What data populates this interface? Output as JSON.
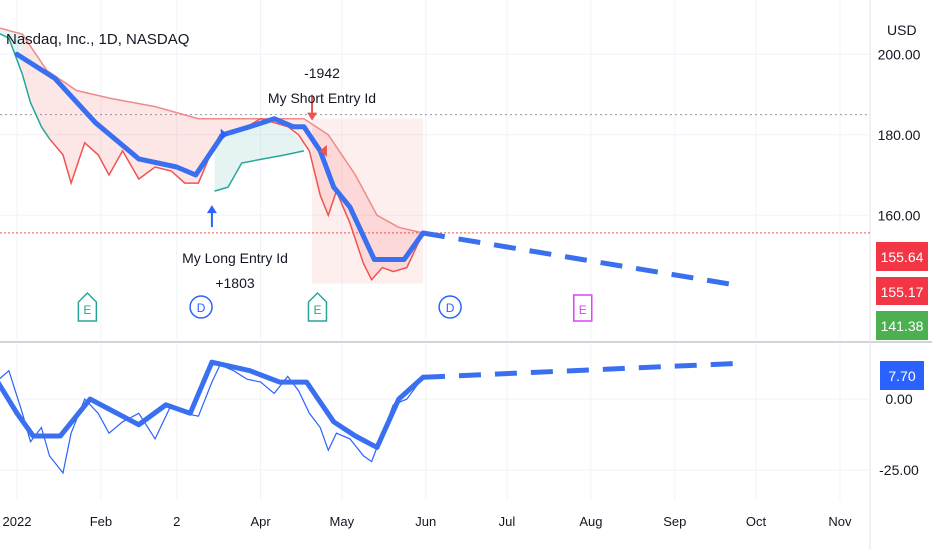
{
  "header": {
    "title": "Nasdaq, Inc., 1D, NASDAQ",
    "currency": "USD"
  },
  "annotations": {
    "short_value": "-1942",
    "short_label": "My Short Entry Id",
    "long_label": "My Long Entry Id",
    "long_value": "+1803"
  },
  "events": {
    "earnings_letter": "E",
    "dividend_letter": "D"
  },
  "price_badges": {
    "last": "155.64",
    "mid": "155.17",
    "low": "141.38"
  },
  "osc_badge": "7.70",
  "colors": {
    "blue": "#2962ff",
    "thick_blue": "#3a6ff0",
    "red": "#ef5350",
    "green": "#26a69a",
    "magenta": "#e040fb",
    "badge_red": "#f23645",
    "badge_green": "#4caf50",
    "grid": "#f0f3fa",
    "axis_text": "#131722"
  },
  "chart_data": [
    {
      "type": "line",
      "title": "Nasdaq, Inc., 1D, NASDAQ",
      "ylabel": "USD",
      "ylim": [
        130,
        212
      ],
      "x_ticks": [
        {
          "date": "2022-01-01",
          "label": "2022"
        },
        {
          "date": "2022-02-01",
          "label": "Feb"
        },
        {
          "date": "2022-03-01",
          "label": "2"
        },
        {
          "date": "2022-04-01",
          "label": "Apr"
        },
        {
          "date": "2022-05-01",
          "label": "May"
        },
        {
          "date": "2022-06-01",
          "label": "Jun"
        },
        {
          "date": "2022-07-01",
          "label": "Jul"
        },
        {
          "date": "2022-08-01",
          "label": "Aug"
        },
        {
          "date": "2022-09-01",
          "label": "Sep"
        },
        {
          "date": "2022-10-01",
          "label": "Oct"
        },
        {
          "date": "2022-11-01",
          "label": "Nov"
        }
      ],
      "y_ticks": [
        200,
        180,
        160
      ],
      "reference_line": 185,
      "last_price_line": 155.64,
      "series": [
        {
          "id": "price",
          "x": [
            "2021-12-23",
            "2021-12-29",
            "2022-01-03",
            "2022-01-06",
            "2022-01-10",
            "2022-01-13",
            "2022-01-18",
            "2022-01-21",
            "2022-01-26",
            "2022-01-31",
            "2022-02-04",
            "2022-02-09",
            "2022-02-15",
            "2022-02-21",
            "2022-02-27",
            "2022-03-04",
            "2022-03-09",
            "2022-03-14",
            "2022-03-17",
            "2022-03-22",
            "2022-03-27",
            "2022-04-01",
            "2022-04-06",
            "2022-04-11",
            "2022-04-15",
            "2022-04-19",
            "2022-04-23",
            "2022-04-26",
            "2022-04-29",
            "2022-05-04",
            "2022-05-09",
            "2022-05-12",
            "2022-05-16",
            "2022-05-20",
            "2022-05-25",
            "2022-05-31"
          ],
          "y": [
            206,
            204,
            195,
            188,
            182,
            179,
            175,
            168,
            178,
            175,
            170,
            176,
            169,
            172,
            171,
            168,
            168,
            176,
            180,
            181,
            182,
            184,
            183,
            182,
            180,
            176,
            165,
            160,
            166,
            158,
            148,
            144,
            147,
            146,
            147,
            155.6
          ]
        },
        {
          "id": "trend-line",
          "x": [
            "2022-01-01",
            "2022-01-15",
            "2022-01-30",
            "2022-02-15",
            "2022-03-01",
            "2022-03-08",
            "2022-03-18",
            "2022-03-28",
            "2022-04-06",
            "2022-04-13",
            "2022-04-17",
            "2022-04-23",
            "2022-04-28",
            "2022-05-04",
            "2022-05-13",
            "2022-05-20",
            "2022-05-24",
            "2022-05-31"
          ],
          "y": [
            200,
            194,
            183,
            174,
            172,
            170,
            180,
            182,
            184,
            182,
            182,
            176,
            167,
            162,
            149,
            149,
            149,
            155.6
          ]
        },
        {
          "id": "stop-upper",
          "x": [
            "2021-12-23",
            "2022-01-03",
            "2022-01-12",
            "2022-01-23",
            "2022-02-05",
            "2022-02-21",
            "2022-03-09",
            "2022-03-15",
            "2022-04-17",
            "2022-04-26",
            "2022-05-06",
            "2022-05-14",
            "2022-05-22",
            "2022-05-31"
          ],
          "y": [
            207,
            205,
            196,
            191,
            189,
            187,
            184,
            184,
            184,
            180,
            170,
            160,
            157,
            155.6
          ]
        },
        {
          "id": "stop-lower",
          "x": [
            "2022-03-15",
            "2022-03-20",
            "2022-03-25",
            "2022-04-02",
            "2022-04-10",
            "2022-04-17"
          ],
          "y": [
            166,
            167,
            173,
            174,
            175,
            176
          ]
        },
        {
          "id": "projection",
          "x": [
            "2022-05-31",
            "2022-09-25"
          ],
          "y": [
            155.6,
            142.5
          ]
        }
      ],
      "markers": [
        {
          "label": "My Long Entry Id",
          "value": "+1803",
          "date": "2022-03-14",
          "price": 168,
          "side": "long"
        },
        {
          "label": "My Short Entry Id",
          "value": "-1942",
          "date": "2022-04-20",
          "price": 184,
          "side": "short"
        }
      ],
      "events": [
        {
          "type": "E",
          "date": "2022-01-27",
          "color": "#26a69a"
        },
        {
          "type": "D",
          "date": "2022-03-10",
          "color": "#2962ff"
        },
        {
          "type": "E",
          "date": "2022-04-22",
          "color": "#26a69a"
        },
        {
          "type": "D",
          "date": "2022-06-10",
          "color": "#2962ff"
        },
        {
          "type": "E",
          "date": "2022-07-29",
          "color": "#e040fb"
        }
      ]
    },
    {
      "type": "line",
      "ylim": [
        -32,
        18
      ],
      "y_ticks": [
        0,
        -25
      ],
      "last_value": 7.7,
      "series": [
        {
          "id": "oscillator",
          "x": [
            "2021-12-23",
            "2021-12-29",
            "2022-01-03",
            "2022-01-06",
            "2022-01-10",
            "2022-01-13",
            "2022-01-18",
            "2022-01-21",
            "2022-01-26",
            "2022-01-31",
            "2022-02-04",
            "2022-02-09",
            "2022-02-15",
            "2022-02-21",
            "2022-02-27",
            "2022-03-04",
            "2022-03-09",
            "2022-03-14",
            "2022-03-17",
            "2022-03-22",
            "2022-03-27",
            "2022-04-01",
            "2022-04-06",
            "2022-04-11",
            "2022-04-15",
            "2022-04-19",
            "2022-04-23",
            "2022-04-26",
            "2022-04-29",
            "2022-05-04",
            "2022-05-09",
            "2022-05-12",
            "2022-05-16",
            "2022-05-20",
            "2022-05-25",
            "2022-05-31"
          ],
          "y": [
            5,
            10,
            -5,
            -15,
            -10,
            -20,
            -26,
            -12,
            0,
            -5,
            -12,
            -8,
            -5,
            -14,
            -2,
            -5,
            -6,
            6,
            12,
            10,
            7,
            6,
            2,
            8,
            3,
            -5,
            -10,
            -18,
            -12,
            -14,
            -20,
            -22,
            -12,
            -2,
            0,
            7.7
          ]
        },
        {
          "id": "oscillator-smoothed",
          "x": [
            "2021-12-23",
            "2022-01-01",
            "2022-01-07",
            "2022-01-17",
            "2022-01-28",
            "2022-02-05",
            "2022-02-15",
            "2022-02-25",
            "2022-03-06",
            "2022-03-14",
            "2022-03-28",
            "2022-04-08",
            "2022-04-18",
            "2022-04-28",
            "2022-05-06",
            "2022-05-14",
            "2022-05-22",
            "2022-05-31"
          ],
          "y": [
            9,
            -5,
            -13,
            -13,
            0,
            -4,
            -9,
            -2,
            -5,
            13,
            10,
            6,
            6,
            -8,
            -13,
            -17,
            0,
            7.7
          ]
        },
        {
          "id": "oscillator-projection",
          "x": [
            "2022-05-31",
            "2022-09-25"
          ],
          "y": [
            7.7,
            12.6
          ]
        }
      ]
    }
  ]
}
